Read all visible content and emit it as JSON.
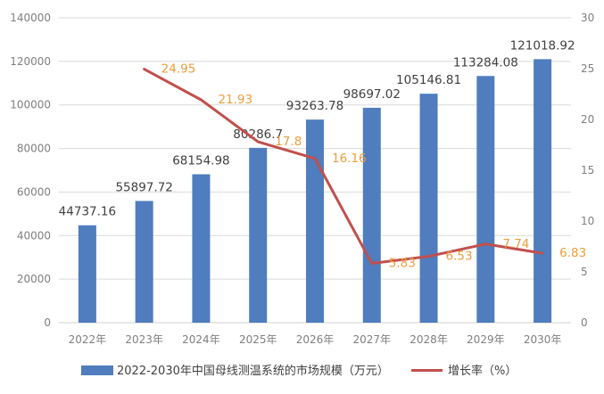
{
  "chart_data": {
    "type": "bar",
    "categories": [
      "2022年",
      "2023年",
      "2024年",
      "2025年",
      "2026年",
      "2027年",
      "2028年",
      "2029年",
      "2030年"
    ],
    "series": [
      {
        "name": "2022-2030年中国母线测温系统的市场规模（万元）",
        "type": "bar",
        "axis": "left",
        "values": [
          44737.16,
          55897.72,
          68154.98,
          80286.7,
          93263.78,
          98697.02,
          105146.81,
          113284.08,
          121018.92
        ],
        "labels": [
          "44737.16",
          "55897.72",
          "68154.98",
          "80286.7",
          "93263.78",
          "98697.02",
          "105146.81",
          "113284.08",
          "121018.92"
        ],
        "color": "#4f7dbd"
      },
      {
        "name": "增长率（%）",
        "type": "line",
        "axis": "right",
        "values": [
          null,
          24.95,
          21.93,
          17.8,
          16.16,
          5.83,
          6.53,
          7.74,
          6.83
        ],
        "labels": [
          "",
          "24.95",
          "21.93",
          "17.8",
          "16.16",
          "5.83",
          "6.53",
          "7.74",
          "6.83"
        ],
        "color": "#c0504d",
        "label_color": "#ed9d3c"
      }
    ],
    "y_left": {
      "min": 0,
      "max": 140000,
      "ticks": [
        "0",
        "20000",
        "40000",
        "60000",
        "80000",
        "100000",
        "120000",
        "140000"
      ]
    },
    "y_right": {
      "min": 0,
      "max": 30,
      "ticks": [
        "0",
        "5",
        "10",
        "15",
        "20",
        "25",
        "30"
      ]
    },
    "grid": true,
    "legend_position": "bottom"
  }
}
